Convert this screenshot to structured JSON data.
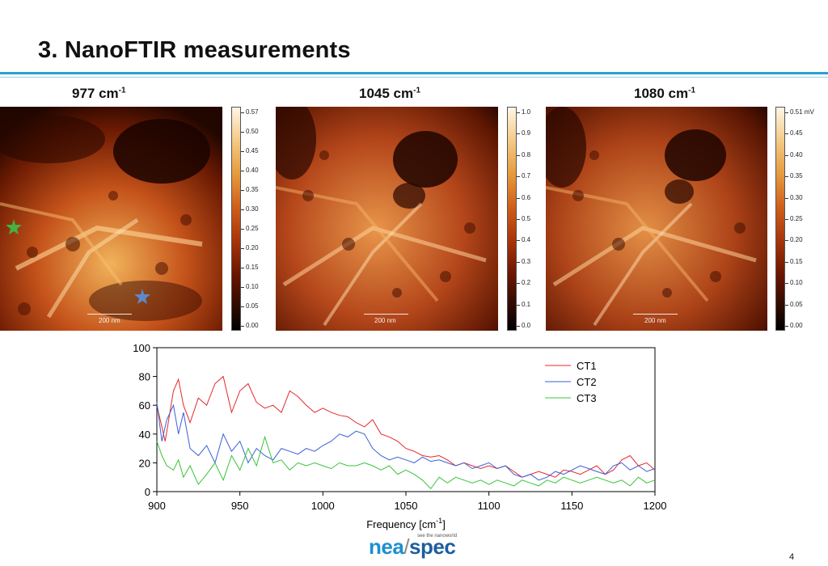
{
  "title": "3. NanoFTIR measurements",
  "panels": [
    {
      "label_main": "977 cm",
      "label_sup": "-1",
      "colorbar_ticks": [
        "0.57",
        "0.50",
        "0.45",
        "0.40",
        "0.35",
        "0.30",
        "0.25",
        "0.20",
        "0.15",
        "0.10",
        "0.05",
        "0.00"
      ],
      "scale_label": "200 nm"
    },
    {
      "label_main": "1045 cm",
      "label_sup": "-1",
      "colorbar_ticks": [
        "1.0",
        "0.9",
        "0.8",
        "0.7",
        "0.6",
        "0.5",
        "0.4",
        "0.3",
        "0.2",
        "0.1",
        "0.0"
      ],
      "scale_label": "200 nm"
    },
    {
      "label_main": "1080 cm",
      "label_sup": "-1",
      "colorbar_ticks": [
        "0.51 mV",
        "0.45",
        "0.40",
        "0.35",
        "0.30",
        "0.25",
        "0.20",
        "0.15",
        "0.10",
        "0.05",
        "0.00"
      ],
      "scale_label": "200 nm"
    }
  ],
  "chart_data": {
    "type": "line",
    "xlabel": "Frequency [cm",
    "xlabel_sup": "-1",
    "xlabel_end": "]",
    "xlim": [
      900,
      1200
    ],
    "ylim": [
      0,
      100
    ],
    "xticks": [
      900,
      950,
      1000,
      1050,
      1100,
      1150,
      1200
    ],
    "yticks": [
      0,
      20,
      40,
      60,
      80,
      100
    ],
    "legend_position": "top-right",
    "series": [
      {
        "name": "CT1",
        "color": "#e8282a",
        "x": [
          900,
          905,
          910,
          913,
          916,
          920,
          925,
          930,
          935,
          940,
          945,
          950,
          955,
          960,
          965,
          970,
          975,
          980,
          985,
          990,
          995,
          1000,
          1005,
          1010,
          1015,
          1020,
          1025,
          1030,
          1035,
          1040,
          1045,
          1050,
          1055,
          1060,
          1065,
          1070,
          1075,
          1080,
          1085,
          1090,
          1095,
          1100,
          1105,
          1110,
          1115,
          1120,
          1125,
          1130,
          1135,
          1140,
          1145,
          1150,
          1155,
          1160,
          1165,
          1170,
          1175,
          1180,
          1185,
          1190,
          1195,
          1200
        ],
        "y": [
          60,
          35,
          70,
          78,
          60,
          48,
          65,
          60,
          75,
          80,
          55,
          70,
          75,
          62,
          58,
          60,
          55,
          70,
          66,
          60,
          55,
          58,
          55,
          53,
          52,
          48,
          45,
          50,
          40,
          38,
          35,
          30,
          28,
          25,
          24,
          25,
          22,
          18,
          20,
          18,
          16,
          18,
          16,
          18,
          14,
          10,
          12,
          14,
          12,
          10,
          15,
          14,
          12,
          15,
          18,
          12,
          15,
          22,
          25,
          18,
          20,
          15
        ]
      },
      {
        "name": "CT2",
        "color": "#3a5fd8",
        "x": [
          900,
          903,
          906,
          910,
          913,
          916,
          920,
          925,
          930,
          935,
          940,
          945,
          950,
          955,
          960,
          965,
          970,
          975,
          980,
          985,
          990,
          995,
          1000,
          1005,
          1010,
          1015,
          1020,
          1025,
          1030,
          1035,
          1040,
          1045,
          1050,
          1055,
          1060,
          1065,
          1070,
          1075,
          1080,
          1085,
          1090,
          1095,
          1100,
          1105,
          1110,
          1115,
          1120,
          1125,
          1130,
          1135,
          1140,
          1145,
          1150,
          1155,
          1160,
          1165,
          1170,
          1175,
          1180,
          1185,
          1190,
          1195,
          1200
        ],
        "y": [
          62,
          35,
          50,
          60,
          40,
          55,
          30,
          25,
          32,
          20,
          40,
          28,
          35,
          20,
          30,
          25,
          22,
          30,
          28,
          26,
          30,
          28,
          32,
          35,
          40,
          38,
          42,
          40,
          30,
          25,
          22,
          24,
          22,
          20,
          24,
          21,
          22,
          20,
          18,
          20,
          16,
          18,
          20,
          16,
          18,
          12,
          10,
          12,
          8,
          10,
          14,
          12,
          15,
          18,
          16,
          14,
          12,
          18,
          20,
          15,
          18,
          14,
          16
        ]
      },
      {
        "name": "CT3",
        "color": "#38c43a",
        "x": [
          900,
          903,
          906,
          910,
          913,
          916,
          920,
          925,
          930,
          935,
          940,
          945,
          950,
          955,
          960,
          965,
          970,
          975,
          980,
          985,
          990,
          995,
          1000,
          1005,
          1010,
          1015,
          1020,
          1025,
          1030,
          1035,
          1040,
          1045,
          1050,
          1055,
          1060,
          1065,
          1070,
          1075,
          1080,
          1085,
          1090,
          1095,
          1100,
          1105,
          1110,
          1115,
          1120,
          1125,
          1130,
          1135,
          1140,
          1145,
          1150,
          1155,
          1160,
          1165,
          1170,
          1175,
          1180,
          1185,
          1190,
          1195,
          1200
        ],
        "y": [
          35,
          25,
          18,
          15,
          22,
          10,
          18,
          5,
          12,
          20,
          8,
          25,
          15,
          30,
          18,
          38,
          20,
          22,
          15,
          20,
          18,
          20,
          18,
          16,
          20,
          18,
          18,
          20,
          18,
          15,
          18,
          12,
          15,
          12,
          8,
          2,
          10,
          6,
          10,
          8,
          6,
          8,
          5,
          8,
          6,
          4,
          8,
          6,
          4,
          8,
          6,
          10,
          8,
          6,
          8,
          10,
          8,
          6,
          8,
          4,
          10,
          6,
          8
        ]
      }
    ]
  },
  "logo": {
    "part1": "nea",
    "part2": "spec",
    "tagline": "see the nanoworld"
  },
  "page_number": "4"
}
